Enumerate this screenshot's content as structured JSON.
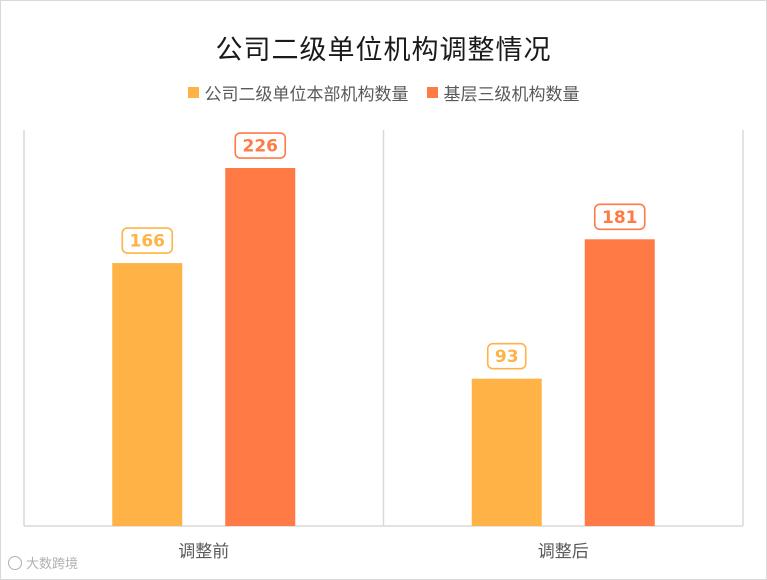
{
  "chart_data": {
    "type": "bar",
    "title": "公司二级单位机构调整情况",
    "categories": [
      "调整前",
      "调整后"
    ],
    "series": [
      {
        "name": "公司二级单位本部机构数量",
        "color": "#FFB347",
        "values": [
          166,
          93
        ]
      },
      {
        "name": "基层三级机构数量",
        "color": "#FF7A45",
        "values": [
          226,
          181
        ]
      }
    ],
    "ylim": [
      0,
      250
    ],
    "grid": false,
    "legend_position": "top"
  },
  "watermark": {
    "text": "大数跨境"
  }
}
